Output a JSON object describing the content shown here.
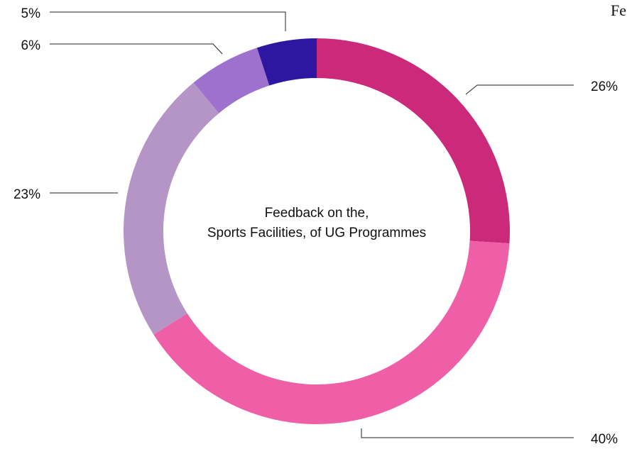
{
  "corner_text": "Fe",
  "chart_data": {
    "type": "pie",
    "donut": true,
    "title_lines": [
      "Feedback on the,",
      "Sports Facilities, of UG Programmes"
    ],
    "slices": [
      {
        "label": "26%",
        "value": 26,
        "color": "#CB2A7B"
      },
      {
        "label": "40%",
        "value": 40,
        "color": "#EE5FA7"
      },
      {
        "label": "23%",
        "value": 23,
        "color": "#B595C5"
      },
      {
        "label": "6%",
        "value": 6,
        "color": "#9D71CD"
      },
      {
        "label": "5%",
        "value": 5,
        "color": "#2E17A0"
      }
    ]
  }
}
